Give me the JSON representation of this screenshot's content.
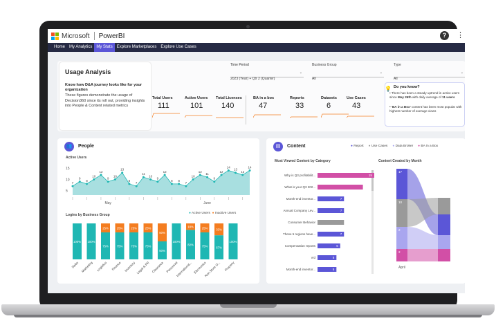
{
  "app": {
    "brand": "Microsoft",
    "product": "PowerBI",
    "help": "?",
    "more": "⋮"
  },
  "nav": [
    "Home",
    "My Analytics",
    "My Stats",
    "Explore Marketplaces",
    "Explore Use Cases"
  ],
  "colors": {
    "accent": "#5b56d7",
    "teal": "#1fb7b3",
    "orange": "#f47d20",
    "pink": "#d24fa6",
    "gray": "#9a9a9a",
    "navy": "#262a44"
  },
  "usage": {
    "title": "Usage Analysis",
    "subtitle_bold": "Know how D&A journey looks like for your organization",
    "desc": "These figures demonstrate the usage of Decision360 since its roll out, providing insights into People & Content related metrics"
  },
  "filters": [
    {
      "label": "Time Period",
      "value": "2023 (Year) + Qtr 2 (Quarter)"
    },
    {
      "label": "Business Group",
      "value": "All"
    },
    {
      "label": "Type",
      "value": "All"
    }
  ],
  "kpis": [
    {
      "label": "Total Users",
      "value": "111"
    },
    {
      "label": "Active Users",
      "value": "101"
    },
    {
      "label": "Total Licenses",
      "value": "140"
    },
    {
      "label": "BA in a box",
      "value": "47"
    },
    {
      "label": "Reports",
      "value": "33"
    },
    {
      "label": "Datasets",
      "value": "6"
    },
    {
      "label": "Use Cases",
      "value": "43"
    }
  ],
  "know": {
    "title": "Do you know?",
    "b1a": "There has been a steady uptrend in active users since ",
    "b1b": "May 26th",
    "b1c": " with daily average of ",
    "b1d": "11 users",
    "b2a": "'BA in a Box'",
    "b2b": " content has been most popular with highest number of average views"
  },
  "people": {
    "title": "People",
    "active_title": "Active Users",
    "month_may": "May",
    "month_june": "June",
    "logins_title": "Logins by Business Group",
    "legend_active": "Active Users",
    "legend_inactive": "Inactive Users"
  },
  "content": {
    "title": "Content",
    "legend": [
      "Report",
      "Use Cases",
      "Data Broker",
      "BA in a Box"
    ],
    "viewed_title": "Most Viewed Content by Category",
    "created_title": "Content Created by Month",
    "month_april": "April"
  },
  "chart_data": [
    {
      "type": "area",
      "title": "Active Users",
      "yticks": [
        "15",
        "10",
        "5"
      ],
      "ylim": [
        3,
        16
      ],
      "values": [
        7,
        9,
        8,
        10,
        12,
        9,
        10,
        13,
        8,
        7,
        11,
        10,
        9,
        12,
        8,
        8,
        7,
        10,
        12,
        11,
        9,
        12,
        14,
        13,
        12,
        14
      ],
      "labels": [
        "7",
        "9",
        "8",
        "10",
        "12",
        "9",
        "10",
        "13",
        "8",
        "7",
        "11",
        "10",
        "9",
        "12",
        "8",
        "8",
        "7",
        "10",
        "12",
        "11",
        "9",
        "12",
        "14",
        "13",
        "12",
        "14"
      ],
      "xlabels": [
        "May",
        "June"
      ]
    },
    {
      "type": "bar",
      "title": "Logins by Business Group",
      "categories": [
        "Sales",
        "Marketing",
        "Logistics",
        "Finance",
        "Inventory",
        "Legal & PR",
        "Clearance",
        "Personnel",
        "International...",
        "Electronics",
        "Non Store O...",
        "Property"
      ],
      "series": [
        {
          "name": "Active Users",
          "values": [
            100,
            100,
            75,
            75,
            75,
            75,
            50,
            100,
            82,
            75,
            67,
            100
          ]
        },
        {
          "name": "Inactive Users",
          "values": [
            0,
            0,
            25,
            25,
            25,
            25,
            50,
            0,
            18,
            25,
            33,
            0
          ]
        }
      ],
      "labels": [
        [
          "100%",
          ""
        ],
        [
          "100%",
          ""
        ],
        [
          "75%",
          "25%"
        ],
        [
          "75%",
          "25%"
        ],
        [
          "75%",
          "25%"
        ],
        [
          "75%",
          "25%"
        ],
        [
          "50%",
          "50%"
        ],
        [
          "100%",
          ""
        ],
        [
          "82%",
          "18%"
        ],
        [
          "75%",
          "25%"
        ],
        [
          "67%",
          "33%"
        ],
        [
          "100%",
          ""
        ]
      ],
      "ylim": [
        0,
        100
      ]
    },
    {
      "type": "bar",
      "title": "Most Viewed Content by Category",
      "categories": [
        "Why is Q3 profitabilit...",
        "What is your Q3 202...",
        "Month-end inventor...",
        "Annual Company Lev...",
        "Consumer Behavior",
        "These 5 regions have...",
        "Compensation reports",
        "vrd",
        "Month-end inventor..."
      ],
      "values": [
        15,
        12,
        7,
        7,
        7,
        7,
        6,
        5,
        5
      ],
      "labels": [
        "15",
        "",
        "7",
        "7",
        "",
        "7",
        "6",
        "5",
        "5"
      ],
      "colors": [
        "#d24fa6",
        "#d24fa6",
        "#5b56d7",
        "#5b56d7",
        "#9a9a9a",
        "#5b56d7",
        "#5b56d7",
        "#5b56d7",
        "#5b56d7"
      ]
    },
    {
      "type": "area",
      "title": "Content Created by Month",
      "x": [
        "April"
      ],
      "segments": [
        "17",
        "10",
        "2",
        "2"
      ]
    }
  ]
}
